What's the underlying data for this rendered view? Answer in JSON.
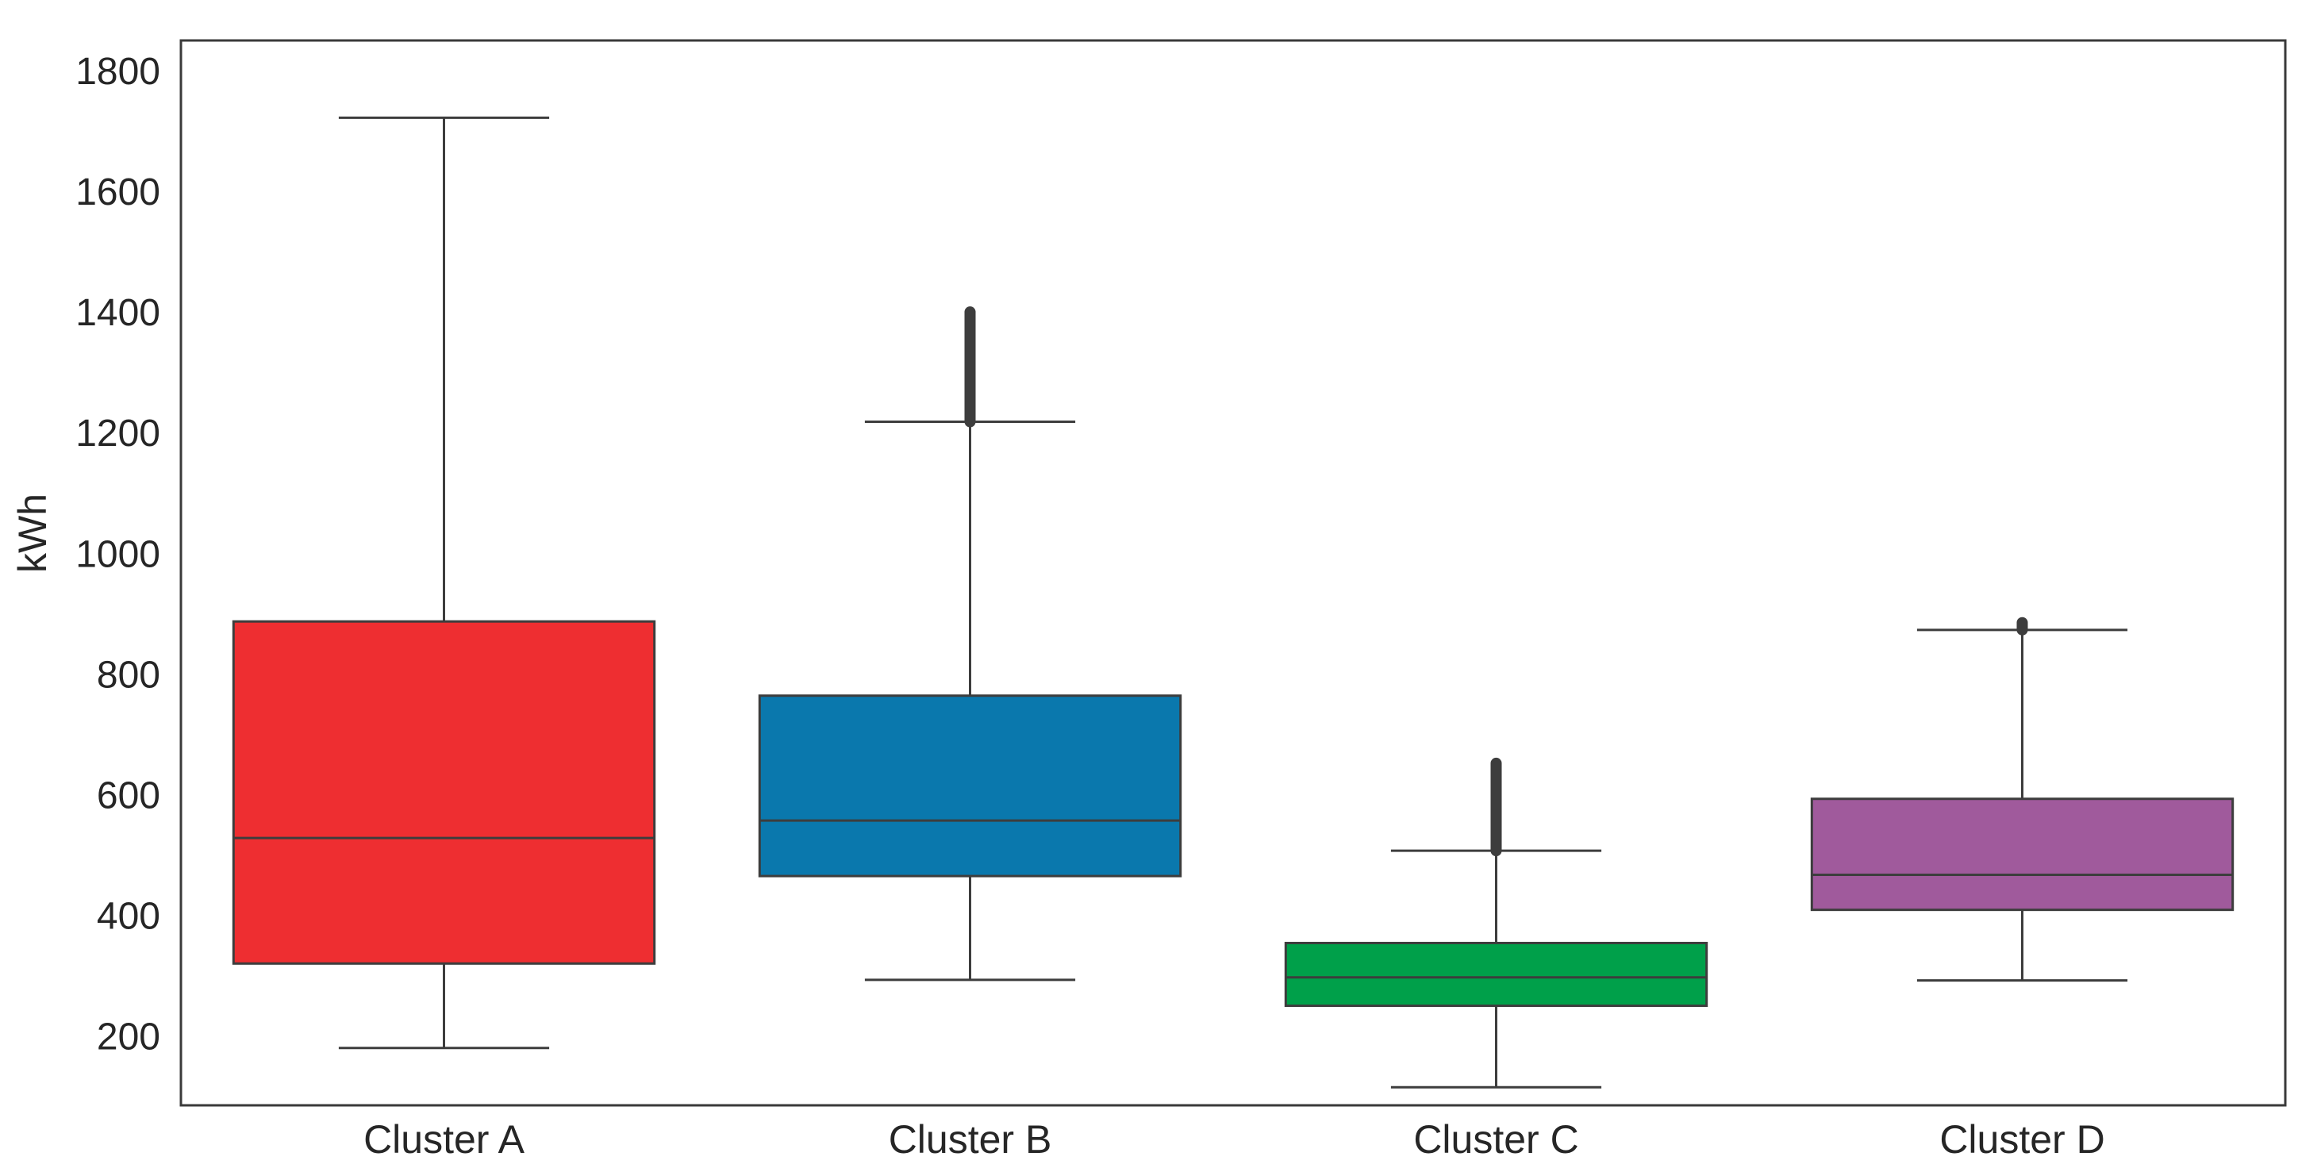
{
  "chart_data": {
    "type": "box",
    "title": "",
    "xlabel": "",
    "ylabel": "kWh",
    "ylim": [
      85,
      1850
    ],
    "yticks": [
      200,
      400,
      600,
      800,
      1000,
      1200,
      1400,
      1600,
      1800
    ],
    "grid": false,
    "categories": [
      "Cluster A",
      "Cluster B",
      "Cluster C",
      "Cluster D"
    ],
    "boxes": [
      {
        "category": "Cluster A",
        "color": "#ee2e31",
        "whisker_low": 180,
        "q1": 320,
        "median": 528,
        "q3": 887,
        "whisker_high": 1722,
        "outliers_low": null,
        "outliers_high": null
      },
      {
        "category": "Cluster B",
        "color": "#0a78ad",
        "whisker_low": 293,
        "q1": 465,
        "median": 557,
        "q3": 764,
        "whisker_high": 1218,
        "outliers_low": 1218,
        "outliers_high": 1400
      },
      {
        "category": "Cluster C",
        "color": "#00a04a",
        "whisker_low": 115,
        "q1": 250,
        "median": 297,
        "q3": 354,
        "whisker_high": 507,
        "outliers_low": 507,
        "outliers_high": 652
      },
      {
        "category": "Cluster D",
        "color": "#a05a9c",
        "whisker_low": 292,
        "q1": 409,
        "median": 467,
        "q3": 593,
        "whisker_high": 873,
        "outliers_low": 873,
        "outliers_high": 885
      }
    ]
  }
}
